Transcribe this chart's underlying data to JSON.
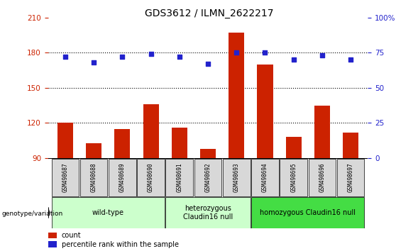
{
  "title": "GDS3612 / ILMN_2622217",
  "samples": [
    "GSM498687",
    "GSM498688",
    "GSM498689",
    "GSM498690",
    "GSM498691",
    "GSM498692",
    "GSM498693",
    "GSM498694",
    "GSM498695",
    "GSM498696",
    "GSM498697"
  ],
  "bar_values": [
    120,
    103,
    115,
    136,
    116,
    98,
    197,
    170,
    108,
    135,
    112
  ],
  "dot_values": [
    72,
    68,
    72,
    74,
    72,
    67,
    75,
    75,
    70,
    73,
    70
  ],
  "bar_color": "#cc2200",
  "dot_color": "#2222cc",
  "ylim_left": [
    90,
    210
  ],
  "ylim_right": [
    0,
    100
  ],
  "yticks_left": [
    90,
    120,
    150,
    180,
    210
  ],
  "yticks_right": [
    0,
    25,
    50,
    75,
    100
  ],
  "group_defs": [
    {
      "start": 0,
      "end": 3,
      "label": "wild-type",
      "color": "#ccffcc"
    },
    {
      "start": 4,
      "end": 6,
      "label": "heterozygous\nClaudin16 null",
      "color": "#ccffcc"
    },
    {
      "start": 7,
      "end": 10,
      "label": "homozygous Claudin16 null",
      "color": "#44dd44"
    }
  ],
  "legend_count_color": "#cc2200",
  "legend_dot_color": "#2222cc",
  "genotype_label": "genotype/variation",
  "sample_bg_color": "#d8d8d8",
  "grid_dotted_vals": [
    120,
    150,
    180
  ],
  "left_axis_color": "#cc2200",
  "right_axis_color": "#2222cc",
  "title_fontsize": 10,
  "tick_fontsize": 7.5,
  "sample_fontsize": 5.5,
  "group_fontsize": 7,
  "legend_fontsize": 7
}
